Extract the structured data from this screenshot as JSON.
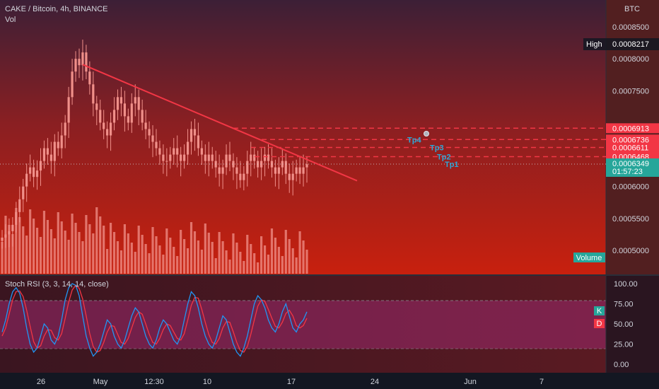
{
  "header": {
    "title": "CAKE / Bitcoin, 4h, BINANCE",
    "vol_label": "Vol",
    "currency": "BTC"
  },
  "price_axis": {
    "ticks": [
      "0.0008500",
      "0.0008000",
      "0.0007500",
      "0.0006000",
      "0.0005500",
      "0.0005000"
    ]
  },
  "high_tag": {
    "label": "High",
    "value": "0.0008217"
  },
  "level_tags": [
    "0.0006913",
    "0.0006736",
    "0.0006611",
    "0.0006468"
  ],
  "current_price": {
    "value": "0.0006349",
    "countdown": "01:57:23"
  },
  "targets": [
    {
      "label": "Tp4",
      "price": 0.0006736
    },
    {
      "label": "Tp3",
      "price": 0.0006611
    },
    {
      "label": "Tp2",
      "price": 0.0006468
    },
    {
      "label": "Tp1",
      "price": 0.000635
    }
  ],
  "volume_label": "Volume",
  "indicator": {
    "title": "Stoch RSI (3, 3, 14, 14, close)",
    "ticks": [
      "100.00",
      "75.00",
      "50.00",
      "25.00",
      "0.00"
    ],
    "k_label": "K",
    "d_label": "D"
  },
  "time_axis": {
    "labels": [
      "26",
      "May",
      "12:30",
      "10",
      "17",
      "24",
      "Jun",
      "7"
    ]
  },
  "colors": {
    "trendline": "#f23645",
    "level_line": "#f23645",
    "current_tag": "#26a69a",
    "k_line": "#2196f3",
    "d_line": "#f23645",
    "candle": "#f0908a",
    "target_text": "#2ea7d6"
  },
  "chart_data": {
    "type": "candlestick",
    "symbol": "CAKE / Bitcoin",
    "interval": "4h",
    "exchange": "BINANCE",
    "ylim": [
      0.00047,
      0.00087
    ],
    "close_series": [
      0.00052,
      0.000525,
      0.00053,
      0.00054,
      0.00056,
      0.00058,
      0.0006,
      0.00062,
      0.00063,
      0.000615,
      0.000625,
      0.00064,
      0.00066,
      0.00065,
      0.00064,
      0.00067,
      0.00066,
      0.00068,
      0.0007,
      0.00074,
      0.00078,
      0.0008,
      0.00079,
      0.00081,
      0.00078,
      0.00076,
      0.00073,
      0.00072,
      0.0007,
      0.00069,
      0.00068,
      0.0007,
      0.00072,
      0.00074,
      0.00073,
      0.00071,
      0.0007,
      0.00073,
      0.00074,
      0.00072,
      0.0007,
      0.00069,
      0.00068,
      0.00067,
      0.00066,
      0.00065,
      0.00064,
      0.00064,
      0.00065,
      0.00066,
      0.00065,
      0.00064,
      0.00065,
      0.00067,
      0.00069,
      0.00068,
      0.00066,
      0.00065,
      0.00064,
      0.00065,
      0.00064,
      0.00063,
      0.00062,
      0.00063,
      0.00065,
      0.00064,
      0.00063,
      0.00062,
      0.00061,
      0.00062,
      0.00064,
      0.00065,
      0.00064,
      0.00063,
      0.00064,
      0.00065,
      0.00064,
      0.00063,
      0.00062,
      0.00063,
      0.00064,
      0.00062,
      0.00061,
      0.00062,
      0.00063,
      0.00062,
      0.00063,
      0.0006349
    ],
    "trendline": {
      "from_price": 0.000791,
      "to_price": 0.000609
    },
    "high": 0.0008217,
    "last": 0.0006349,
    "levels": [
      0.0006913,
      0.0006736,
      0.0006611,
      0.0006468
    ],
    "stoch_rsi_k": [
      40,
      55,
      75,
      90,
      95,
      88,
      70,
      45,
      25,
      15,
      20,
      35,
      50,
      45,
      30,
      25,
      35,
      55,
      80,
      95,
      100,
      98,
      85,
      60,
      35,
      20,
      10,
      15,
      25,
      40,
      55,
      50,
      35,
      25,
      20,
      30,
      45,
      60,
      70,
      65,
      50,
      35,
      25,
      20,
      30,
      45,
      55,
      50,
      40,
      30,
      25,
      35,
      55,
      75,
      90,
      85,
      70,
      50,
      35,
      25,
      20,
      30,
      45,
      60,
      55,
      40,
      25,
      15,
      10,
      20,
      35,
      55,
      75,
      85,
      80,
      70,
      55,
      45,
      40,
      50,
      65,
      75,
      60,
      45,
      40,
      50,
      55,
      65
    ],
    "stoch_rsi_d": [
      35,
      45,
      62,
      80,
      90,
      91,
      84,
      67,
      47,
      28,
      20,
      23,
      35,
      43,
      42,
      33,
      30,
      38,
      57,
      77,
      92,
      98,
      94,
      81,
      60,
      38,
      22,
      15,
      17,
      27,
      40,
      48,
      47,
      37,
      27,
      25,
      32,
      45,
      58,
      65,
      62,
      50,
      37,
      27,
      25,
      32,
      43,
      50,
      48,
      40,
      32,
      30,
      38,
      55,
      73,
      83,
      82,
      68,
      52,
      37,
      27,
      25,
      32,
      45,
      53,
      52,
      40,
      27,
      17,
      15,
      22,
      37,
      55,
      72,
      80,
      78,
      68,
      57,
      47,
      45,
      52,
      63,
      67,
      60,
      48,
      45,
      48,
      57
    ]
  }
}
